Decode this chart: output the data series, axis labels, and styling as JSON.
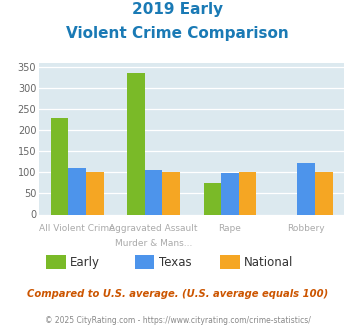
{
  "title_line1": "2019 Early",
  "title_line2": "Violent Crime Comparison",
  "series": {
    "Early": [
      230,
      335,
      75,
      0
    ],
    "Texas": [
      110,
      105,
      98,
      122
    ],
    "National": [
      100,
      100,
      100,
      100
    ]
  },
  "colors": {
    "Early": "#7aba28",
    "Texas": "#4d94eb",
    "National": "#f5a623"
  },
  "top_labels": [
    "All Violent Crime",
    "Aggravated Assault",
    "Rape",
    "Robbery"
  ],
  "bot_labels": [
    "",
    "Murder & Mans...",
    "",
    ""
  ],
  "ylim": [
    0,
    360
  ],
  "yticks": [
    0,
    50,
    100,
    150,
    200,
    250,
    300,
    350
  ],
  "bg_color": "#dce9ef",
  "title_color": "#1a7ab5",
  "subtitle_note": "Compared to U.S. average. (U.S. average equals 100)",
  "footer": "© 2025 CityRating.com - https://www.cityrating.com/crime-statistics/",
  "subtitle_color": "#cc5500",
  "footer_color": "#888888",
  "label_color": "#aaaaaa"
}
